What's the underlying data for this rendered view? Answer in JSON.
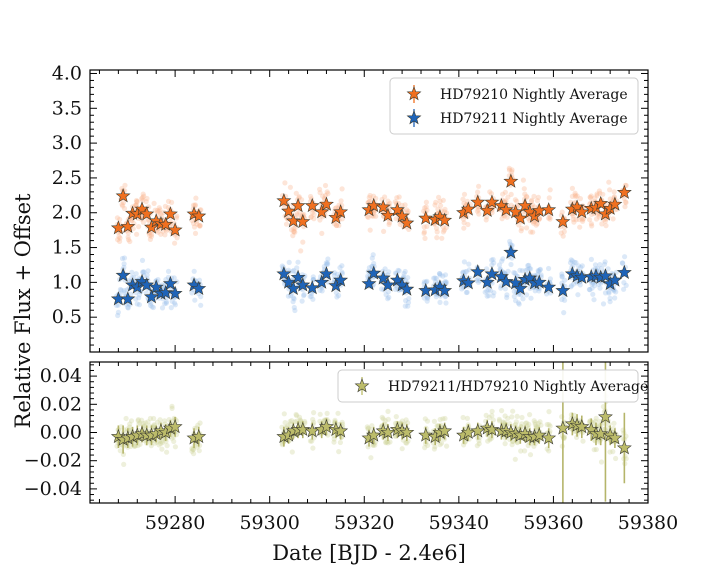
{
  "chart_data": [
    {
      "type": "scatter",
      "panel": "top",
      "xlabel": "",
      "ylabel": "Relative Flux + Offset",
      "xlim": [
        59262,
        59380
      ],
      "ylim": [
        0.0,
        4.05
      ],
      "yticks": [
        "0.5",
        "1.0",
        "1.5",
        "2.0",
        "2.5",
        "3.0",
        "3.5",
        "4.0"
      ],
      "ytick_values": [
        0.5,
        1.0,
        1.5,
        2.0,
        2.5,
        3.0,
        3.5,
        4.0
      ],
      "legend_position": "top-right",
      "series": [
        {
          "name": "HD79210 Nightly Average",
          "color": "#f07020",
          "marker": "star",
          "x": [
            59268,
            59269,
            59270,
            59271,
            59272,
            59273,
            59274,
            59275,
            59276,
            59277,
            59278,
            59279,
            59280,
            59284,
            59285,
            59303,
            59304,
            59305,
            59306,
            59307,
            59309,
            59311,
            59312,
            59314,
            59315,
            59321,
            59322,
            59324,
            59325,
            59327,
            59328,
            59329,
            59333,
            59335,
            59336,
            59337,
            59341,
            59342,
            59344,
            59346,
            59347,
            59349,
            59350,
            59351,
            59352,
            59353,
            59354,
            59355,
            59356,
            59357,
            59359,
            59362,
            59364,
            59365,
            59366,
            59368,
            59369,
            59370,
            59371,
            59372,
            59373,
            59375
          ],
          "y": [
            1.78,
            2.24,
            1.8,
            1.99,
            1.98,
            2.05,
            1.98,
            1.79,
            1.88,
            1.84,
            1.83,
            1.98,
            1.75,
            1.98,
            1.95,
            2.17,
            2.02,
            1.88,
            2.1,
            1.87,
            2.1,
            2.01,
            2.12,
            1.93,
            2.01,
            2.04,
            2.1,
            2.08,
            1.96,
            2.04,
            1.95,
            1.85,
            1.92,
            1.9,
            1.94,
            1.89,
            2.0,
            2.05,
            2.15,
            2.03,
            2.15,
            2.1,
            2.04,
            2.45,
            2.01,
            1.92,
            2.1,
            2.01,
            1.95,
            2.03,
            2.04,
            1.87,
            2.05,
            2.08,
            2.01,
            2.06,
            2.07,
            2.13,
            1.98,
            2.06,
            2.12,
            2.29
          ]
        },
        {
          "name": "HD79211 Nightly Average",
          "color": "#1f64b8",
          "marker": "star",
          "x": [
            59268,
            59269,
            59270,
            59271,
            59272,
            59273,
            59274,
            59275,
            59276,
            59277,
            59278,
            59279,
            59280,
            59284,
            59285,
            59303,
            59304,
            59305,
            59306,
            59307,
            59309,
            59311,
            59312,
            59314,
            59315,
            59321,
            59322,
            59324,
            59325,
            59327,
            59328,
            59329,
            59333,
            59335,
            59336,
            59337,
            59341,
            59342,
            59344,
            59346,
            59347,
            59349,
            59350,
            59351,
            59352,
            59353,
            59354,
            59355,
            59356,
            59357,
            59359,
            59362,
            59364,
            59365,
            59366,
            59368,
            59369,
            59370,
            59371,
            59372,
            59373,
            59375
          ],
          "y": [
            0.76,
            1.1,
            0.76,
            0.96,
            0.93,
            1.01,
            0.96,
            0.79,
            0.93,
            0.84,
            0.85,
            0.98,
            0.84,
            0.96,
            0.91,
            1.12,
            1.0,
            0.91,
            1.07,
            0.96,
            0.92,
            1.0,
            1.12,
            0.95,
            1.03,
            0.98,
            1.13,
            1.06,
            0.96,
            1.03,
            0.96,
            0.9,
            0.88,
            0.89,
            0.93,
            0.88,
            1.02,
            0.99,
            1.15,
            1.0,
            1.12,
            1.08,
            1.01,
            1.43,
            0.99,
            0.91,
            1.04,
            1.06,
            0.99,
            1.0,
            0.93,
            0.88,
            1.12,
            1.09,
            1.07,
            1.08,
            1.09,
            1.07,
            1.09,
            0.98,
            1.03,
            1.14
          ]
        }
      ]
    },
    {
      "type": "scatter",
      "panel": "bottom",
      "xlabel": "Date [BJD - 2.4e6]",
      "ylabel": "",
      "xlim": [
        59262,
        59380
      ],
      "ylim": [
        -0.05,
        0.05
      ],
      "xticks": [
        "59280",
        "59300",
        "59320",
        "59340",
        "59360",
        "59380"
      ],
      "xtick_values": [
        59280,
        59300,
        59320,
        59340,
        59360,
        59380
      ],
      "yticks": [
        "−0.04",
        "−0.02",
        "0.00",
        "0.02",
        "0.04"
      ],
      "ytick_values": [
        -0.04,
        -0.02,
        0.0,
        0.02,
        0.04
      ],
      "legend_position": "top-right",
      "series": [
        {
          "name": "HD79211/HD79210 Nightly Average",
          "color": "#bcbc6a",
          "marker": "star",
          "x": [
            59268,
            59269,
            59270,
            59271,
            59272,
            59273,
            59274,
            59275,
            59276,
            59277,
            59278,
            59279,
            59280,
            59284,
            59285,
            59303,
            59304,
            59305,
            59306,
            59307,
            59309,
            59311,
            59312,
            59314,
            59315,
            59321,
            59322,
            59324,
            59325,
            59327,
            59328,
            59329,
            59333,
            59335,
            59336,
            59337,
            59341,
            59342,
            59344,
            59346,
            59347,
            59349,
            59350,
            59351,
            59352,
            59353,
            59354,
            59355,
            59356,
            59357,
            59359,
            59362,
            59364,
            59365,
            59366,
            59368,
            59369,
            59370,
            59371,
            59372,
            59373,
            59375
          ],
          "y": [
            -0.003,
            -0.005,
            -0.004,
            -0.003,
            -0.002,
            -0.001,
            -0.002,
            -0.002,
            -0.001,
            0.001,
            0.0,
            0.003,
            0.004,
            -0.004,
            -0.003,
            -0.003,
            -0.002,
            0.001,
            0.002,
            0.002,
            0.001,
            0.002,
            0.004,
            0.002,
            0.001,
            -0.004,
            -0.002,
            0.001,
            0.0,
            0.002,
            0.001,
            0.0,
            -0.002,
            -0.003,
            0.0,
            0.001,
            -0.002,
            0.0,
            0.001,
            0.003,
            0.002,
            0.001,
            0.001,
            0.0,
            -0.001,
            -0.002,
            -0.001,
            -0.003,
            -0.003,
            -0.002,
            -0.004,
            0.003,
            0.006,
            0.005,
            0.004,
            0.002,
            -0.001,
            -0.001,
            0.011,
            -0.002,
            -0.004,
            -0.011
          ],
          "err": [
            0.008,
            0.01,
            0.007,
            0.007,
            0.007,
            0.006,
            0.007,
            0.007,
            0.006,
            0.006,
            0.006,
            0.006,
            0.007,
            0.007,
            0.007,
            0.007,
            0.006,
            0.006,
            0.006,
            0.006,
            0.006,
            0.006,
            0.006,
            0.006,
            0.006,
            0.006,
            0.006,
            0.006,
            0.006,
            0.006,
            0.006,
            0.006,
            0.006,
            0.006,
            0.006,
            0.006,
            0.006,
            0.006,
            0.006,
            0.006,
            0.006,
            0.006,
            0.006,
            0.006,
            0.006,
            0.006,
            0.006,
            0.006,
            0.006,
            0.006,
            0.007,
            0.06,
            0.008,
            0.008,
            0.008,
            0.008,
            0.008,
            0.008,
            0.06,
            0.007,
            0.007,
            0.025
          ]
        }
      ]
    }
  ]
}
